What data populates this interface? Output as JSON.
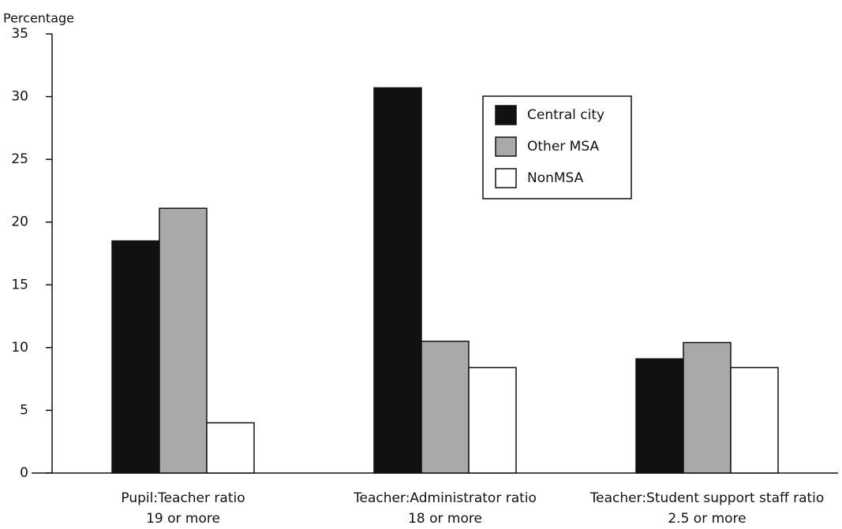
{
  "chart_data": {
    "type": "bar",
    "y_label": "Percentage",
    "categories": [
      [
        "Pupil:Teacher ratio",
        "19 or more"
      ],
      [
        "Teacher:Administrator ratio",
        "18 or more"
      ],
      [
        "Teacher:Student support staff ratio",
        "2.5 or more"
      ]
    ],
    "series": [
      {
        "name": "Central city",
        "color": "#111111",
        "values": [
          18.5,
          30.7,
          9.1
        ]
      },
      {
        "name": "Other MSA",
        "color": "#a9a9a9",
        "values": [
          21.1,
          10.5,
          10.4
        ]
      },
      {
        "name": "NonMSA",
        "color": "#ffffff",
        "values": [
          4.0,
          8.4,
          8.4
        ]
      }
    ],
    "ylim": [
      0,
      35
    ],
    "yticks": [
      0,
      5,
      10,
      15,
      20,
      25,
      30,
      35
    ],
    "grid": false,
    "legend": "upper right"
  }
}
